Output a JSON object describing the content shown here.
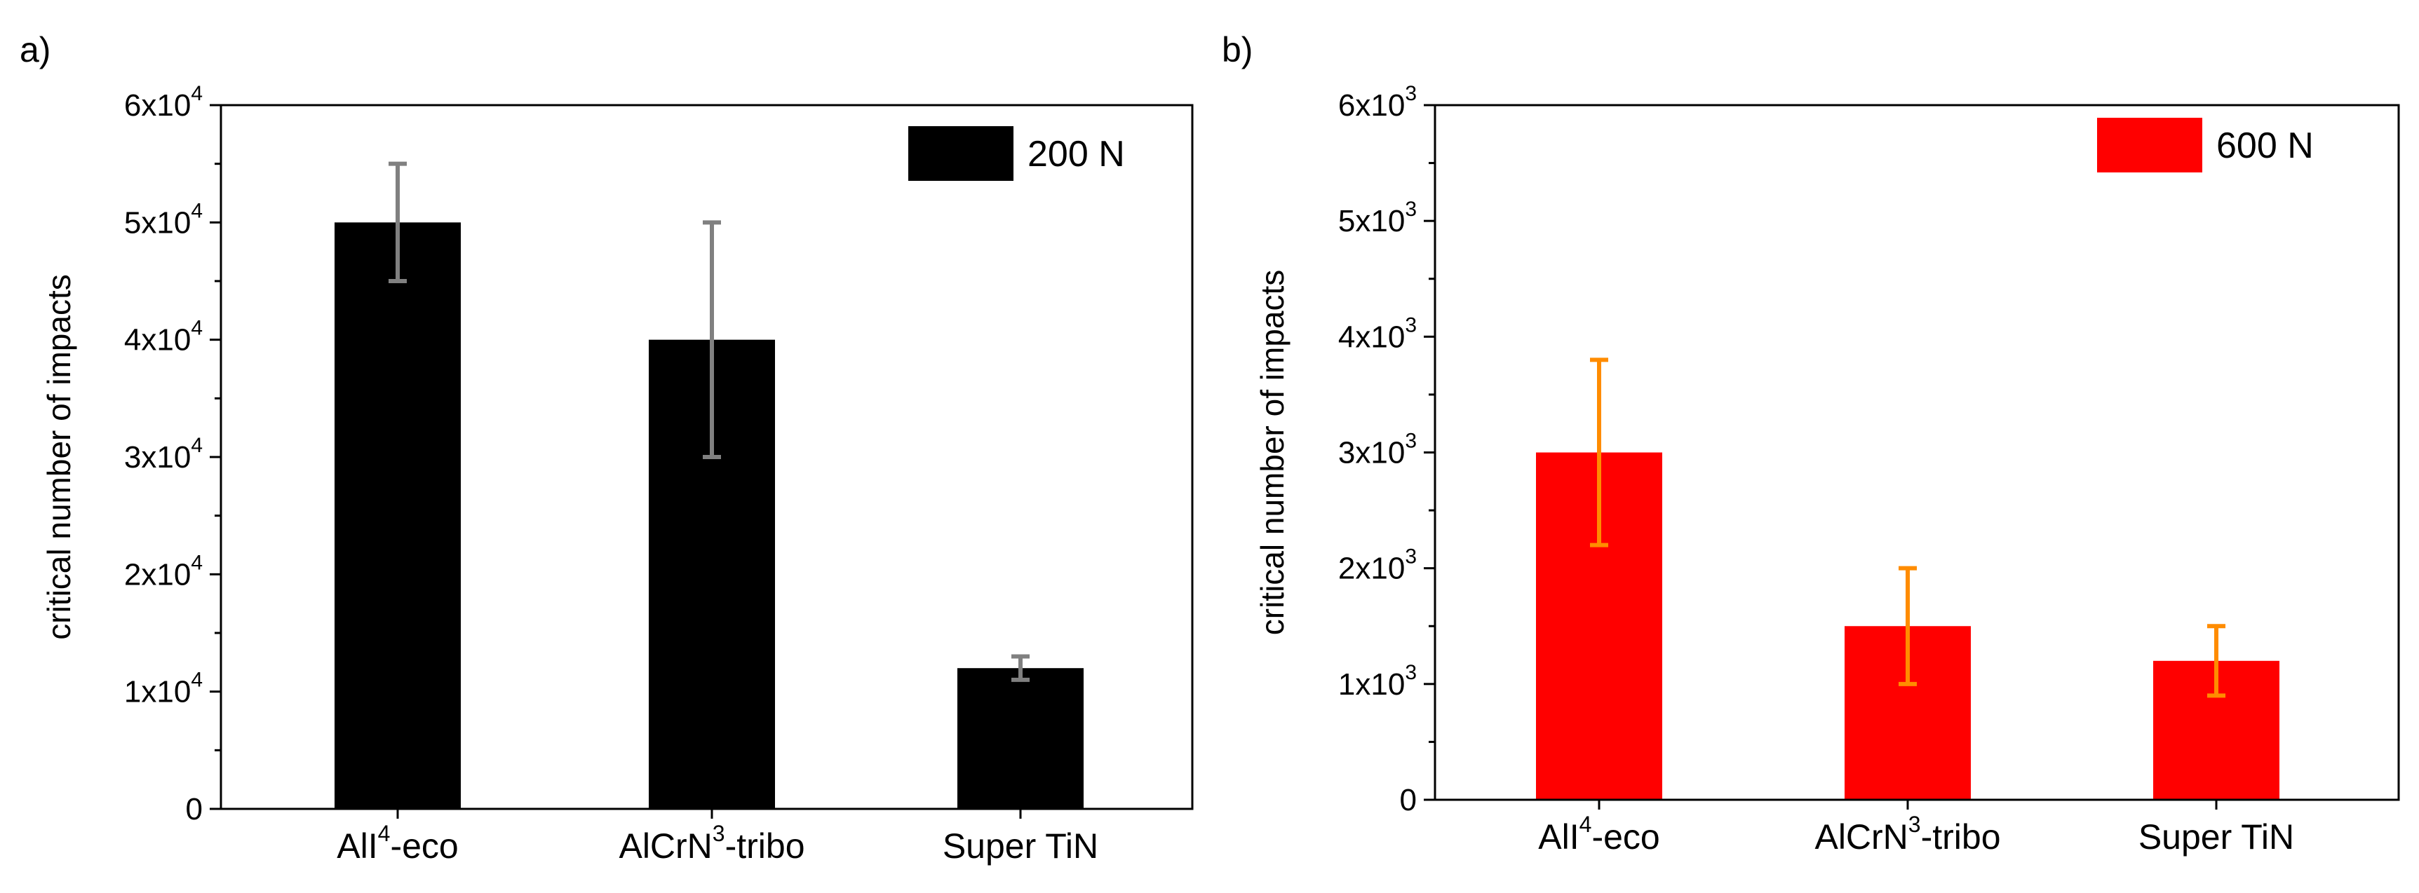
{
  "chart_data": [
    {
      "type": "bar",
      "panel_label": "a)",
      "categories": [
        "AlI",
        "AlCrN",
        "Super TiN"
      ],
      "category_labels": [
        {
          "base": "AlI",
          "sup": "4",
          "suffix": "-eco"
        },
        {
          "base": "AlCrN",
          "sup": "3",
          "suffix": "-tribo"
        },
        {
          "base": "Super TiN",
          "sup": "",
          "suffix": ""
        }
      ],
      "values": [
        50000,
        40000,
        12000
      ],
      "error_low": [
        45000,
        30000,
        11000
      ],
      "error_high": [
        55000,
        50000,
        13000
      ],
      "ylabel": "critical number of impacts",
      "ylim": [
        0,
        60000
      ],
      "yticks": [
        {
          "value": 0,
          "base": "0",
          "exp": ""
        },
        {
          "value": 10000,
          "base": "1x10",
          "exp": "4"
        },
        {
          "value": 20000,
          "base": "2x10",
          "exp": "4"
        },
        {
          "value": 30000,
          "base": "3x10",
          "exp": "4"
        },
        {
          "value": 40000,
          "base": "4x10",
          "exp": "4"
        },
        {
          "value": 50000,
          "base": "5x10",
          "exp": "4"
        },
        {
          "value": 60000,
          "base": "6x10",
          "exp": "4"
        }
      ],
      "legend": {
        "label": "200 N",
        "position": "top-right"
      },
      "bar_color": "#000000",
      "error_color": "#808080"
    },
    {
      "type": "bar",
      "panel_label": "b)",
      "categories": [
        "AlI",
        "AlCrN",
        "Super TiN"
      ],
      "category_labels": [
        {
          "base": "AlI",
          "sup": "4",
          "suffix": "-eco"
        },
        {
          "base": "AlCrN",
          "sup": "3",
          "suffix": "-tribo"
        },
        {
          "base": "Super TiN",
          "sup": "",
          "suffix": ""
        }
      ],
      "values": [
        3000,
        1500,
        1200
      ],
      "error_low": [
        2200,
        1000,
        900
      ],
      "error_high": [
        3800,
        2000,
        1500
      ],
      "ylabel": "critical number of impacts",
      "ylim": [
        0,
        6000
      ],
      "yticks": [
        {
          "value": 0,
          "base": "0",
          "exp": ""
        },
        {
          "value": 1000,
          "base": "1x10",
          "exp": "3"
        },
        {
          "value": 2000,
          "base": "2x10",
          "exp": "3"
        },
        {
          "value": 3000,
          "base": "3x10",
          "exp": "3"
        },
        {
          "value": 4000,
          "base": "4x10",
          "exp": "3"
        },
        {
          "value": 5000,
          "base": "5x10",
          "exp": "3"
        },
        {
          "value": 6000,
          "base": "6x10",
          "exp": "3"
        }
      ],
      "legend": {
        "label": "600 N",
        "position": "top-right"
      },
      "bar_color": "#ff0000",
      "error_color": "#ff8c00"
    }
  ]
}
